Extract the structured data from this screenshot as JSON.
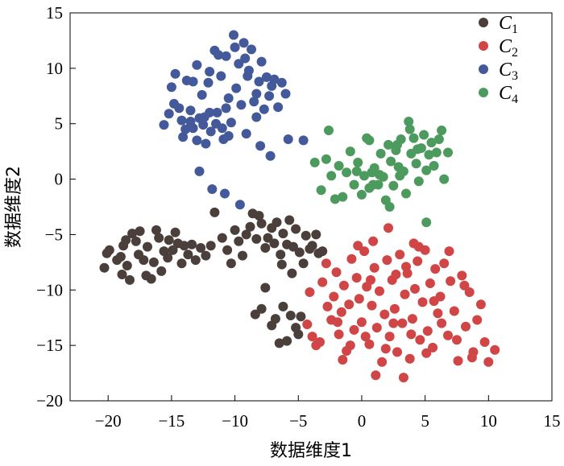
{
  "chart_data": {
    "type": "scatter",
    "xlabel": "数据维度1",
    "ylabel": "数据维度2",
    "xlim": [
      -23,
      15
    ],
    "ylim": [
      -20,
      15
    ],
    "xticks": [
      -20,
      -15,
      -10,
      -5,
      0,
      5,
      10,
      15
    ],
    "yticks": [
      -20,
      -15,
      -10,
      -5,
      0,
      5,
      10,
      15
    ],
    "grid": false,
    "legend_position": "top-right",
    "series": [
      {
        "name": "C",
        "subscript": "1",
        "color": "#4a3f3b",
        "points": [
          [
            -20.3,
            -8.0
          ],
          [
            -19.9,
            -6.4
          ],
          [
            -20.1,
            -6.7
          ],
          [
            -19.3,
            -7.3
          ],
          [
            -19.0,
            -7.0
          ],
          [
            -18.8,
            -6.0
          ],
          [
            -18.6,
            -5.5
          ],
          [
            -18.5,
            -7.8
          ],
          [
            -18.9,
            -8.6
          ],
          [
            -18.3,
            -9.1
          ],
          [
            -18.1,
            -4.9
          ],
          [
            -17.8,
            -5.6
          ],
          [
            -17.6,
            -6.8
          ],
          [
            -17.5,
            -4.7
          ],
          [
            -17.2,
            -7.3
          ],
          [
            -17.0,
            -8.7
          ],
          [
            -16.9,
            -6.1
          ],
          [
            -16.6,
            -9.0
          ],
          [
            -16.4,
            -7.5
          ],
          [
            -16.2,
            -4.6
          ],
          [
            -16.0,
            -5.3
          ],
          [
            -15.8,
            -8.3
          ],
          [
            -15.6,
            -6.5
          ],
          [
            -15.3,
            -7.1
          ],
          [
            -15.2,
            -5.5
          ],
          [
            -14.9,
            -6.4
          ],
          [
            -14.7,
            -4.8
          ],
          [
            -14.5,
            -5.8
          ],
          [
            -14.2,
            -7.6
          ],
          [
            -14.0,
            -6.0
          ],
          [
            -13.7,
            -6.8
          ],
          [
            -13.4,
            -5.9
          ],
          [
            -13.1,
            -7.3
          ],
          [
            -12.7,
            -6.2
          ],
          [
            -12.3,
            -6.9
          ],
          [
            -11.9,
            -6.0
          ],
          [
            -11.6,
            -3.0
          ],
          [
            -11.0,
            -5.3
          ],
          [
            -10.6,
            -6.4
          ],
          [
            -10.3,
            -7.6
          ],
          [
            -10.0,
            -4.6
          ],
          [
            -9.7,
            -5.6
          ],
          [
            -9.4,
            -6.9
          ],
          [
            -9.1,
            -5.0
          ],
          [
            -8.8,
            -4.3
          ],
          [
            -8.6,
            -3.1
          ],
          [
            -8.3,
            -5.4
          ],
          [
            -8.1,
            -3.3
          ],
          [
            -7.9,
            -4.0
          ],
          [
            -7.6,
            -6.2
          ],
          [
            -7.4,
            -5.3
          ],
          [
            -7.1,
            -4.4
          ],
          [
            -6.9,
            -5.8
          ],
          [
            -6.7,
            -3.9
          ],
          [
            -6.4,
            -6.8
          ],
          [
            -6.2,
            -4.9
          ],
          [
            -5.9,
            -5.9
          ],
          [
            -5.7,
            -3.7
          ],
          [
            -5.4,
            -6.1
          ],
          [
            -5.2,
            -4.5
          ],
          [
            -4.9,
            -6.6
          ],
          [
            -4.6,
            -7.6
          ],
          [
            -4.4,
            -5.1
          ],
          [
            -4.1,
            -6.3
          ],
          [
            -3.9,
            -6.0
          ],
          [
            -3.6,
            -5.0
          ],
          [
            -3.4,
            -6.7
          ],
          [
            -3.1,
            -6.5
          ],
          [
            -7.6,
            -9.8
          ],
          [
            -7.1,
            -13.2
          ],
          [
            -6.8,
            -12.6
          ],
          [
            -6.5,
            -14.8
          ],
          [
            -6.2,
            -11.5
          ],
          [
            -5.9,
            -14.6
          ],
          [
            -5.6,
            -12.3
          ],
          [
            -5.2,
            -13.4
          ],
          [
            -5.0,
            -14.0
          ],
          [
            -4.8,
            -12.4
          ],
          [
            -8.4,
            -12.2
          ],
          [
            -7.9,
            -11.7
          ],
          [
            -6.3,
            -7.7
          ],
          [
            -5.5,
            -8.5
          ]
        ]
      },
      {
        "name": "C",
        "subscript": "2",
        "color": "#d04545",
        "points": [
          [
            -4.1,
            -10.2
          ],
          [
            -4.3,
            -13.1
          ],
          [
            -3.9,
            -14.2
          ],
          [
            -3.6,
            -15.0
          ],
          [
            -3.3,
            -14.7
          ],
          [
            -3.1,
            -9.3
          ],
          [
            -2.8,
            -7.6
          ],
          [
            -2.4,
            -12.7
          ],
          [
            -2.2,
            -10.6
          ],
          [
            -2.0,
            -8.4
          ],
          [
            -1.8,
            -14.0
          ],
          [
            -1.6,
            -12.0
          ],
          [
            -1.4,
            -9.6
          ],
          [
            -1.2,
            -15.5
          ],
          [
            -1.0,
            -11.3
          ],
          [
            -0.8,
            -7.2
          ],
          [
            -0.6,
            -13.6
          ],
          [
            -0.4,
            -8.9
          ],
          [
            -0.2,
            -10.8
          ],
          [
            0.0,
            -12.9
          ],
          [
            0.2,
            -6.5
          ],
          [
            0.4,
            -9.7
          ],
          [
            0.6,
            -14.9
          ],
          [
            0.8,
            -11.4
          ],
          [
            1.0,
            -8.0
          ],
          [
            1.2,
            -13.4
          ],
          [
            1.4,
            -10.1
          ],
          [
            1.6,
            -16.5
          ],
          [
            1.8,
            -12.2
          ],
          [
            2.0,
            -7.3
          ],
          [
            2.2,
            -14.2
          ],
          [
            2.4,
            -9.1
          ],
          [
            2.6,
            -11.7
          ],
          [
            2.8,
            -15.6
          ],
          [
            3.0,
            -6.8
          ],
          [
            3.2,
            -13.0
          ],
          [
            3.4,
            -10.4
          ],
          [
            3.6,
            -8.5
          ],
          [
            3.8,
            -16.2
          ],
          [
            4.0,
            -12.6
          ],
          [
            4.2,
            -9.9
          ],
          [
            4.4,
            -7.4
          ],
          [
            4.6,
            -14.5
          ],
          [
            4.8,
            -11.1
          ],
          [
            5.0,
            -6.4
          ],
          [
            5.2,
            -13.7
          ],
          [
            5.4,
            -9.4
          ],
          [
            5.6,
            -15.2
          ],
          [
            5.8,
            -8.1
          ],
          [
            6.0,
            -12.1
          ],
          [
            6.2,
            -10.6
          ],
          [
            6.5,
            -7.6
          ],
          [
            6.8,
            -14.1
          ],
          [
            7.0,
            -9.2
          ],
          [
            7.3,
            -11.9
          ],
          [
            7.6,
            -16.4
          ],
          [
            7.9,
            -8.7
          ],
          [
            8.2,
            -13.3
          ],
          [
            8.5,
            -10.2
          ],
          [
            8.8,
            -15.6
          ],
          [
            9.1,
            -12.7
          ],
          [
            9.4,
            -11.3
          ],
          [
            9.7,
            -14.7
          ],
          [
            10.0,
            -16.5
          ],
          [
            10.5,
            -15.4
          ],
          [
            -2.7,
            -11.5
          ],
          [
            -1.5,
            -16.3
          ],
          [
            -0.3,
            -6.0
          ],
          [
            0.9,
            -5.6
          ],
          [
            2.1,
            -4.4
          ],
          [
            3.3,
            -17.9
          ],
          [
            4.5,
            -6.1
          ],
          [
            5.7,
            -11.0
          ],
          [
            6.9,
            -6.5
          ],
          [
            8.1,
            -9.6
          ],
          [
            -0.9,
            -15.0
          ],
          [
            0.7,
            -9.1
          ],
          [
            1.9,
            -15.3
          ],
          [
            2.7,
            -8.6
          ],
          [
            3.9,
            -14.0
          ],
          [
            5.1,
            -15.7
          ],
          [
            6.3,
            -13.0
          ],
          [
            7.5,
            -14.5
          ],
          [
            8.7,
            -16.1
          ],
          [
            1.1,
            -17.7
          ],
          [
            4.1,
            -5.8
          ],
          [
            -1.9,
            -12.9
          ],
          [
            0.3,
            -14.2
          ],
          [
            2.5,
            -13.0
          ],
          [
            3.5,
            -7.9
          ]
        ]
      },
      {
        "name": "C",
        "subscript": "3",
        "color": "#43599a",
        "points": [
          [
            -15.6,
            4.9
          ],
          [
            -15.2,
            5.9
          ],
          [
            -15.0,
            8.3
          ],
          [
            -14.7,
            9.5
          ],
          [
            -14.4,
            6.4
          ],
          [
            -14.1,
            3.8
          ],
          [
            -13.8,
            8.9
          ],
          [
            -13.5,
            6.2
          ],
          [
            -13.3,
            4.6
          ],
          [
            -13.0,
            10.3
          ],
          [
            -12.8,
            5.5
          ],
          [
            -12.6,
            7.6
          ],
          [
            -12.3,
            3.2
          ],
          [
            -12.1,
            8.7
          ],
          [
            -11.9,
            4.3
          ],
          [
            -11.6,
            11.6
          ],
          [
            -11.4,
            6.0
          ],
          [
            -11.1,
            9.3
          ],
          [
            -10.9,
            3.6
          ],
          [
            -10.7,
            11.1
          ],
          [
            -10.5,
            7.3
          ],
          [
            -10.3,
            5.1
          ],
          [
            -10.1,
            13.0
          ],
          [
            -9.9,
            8.2
          ],
          [
            -9.7,
            10.4
          ],
          [
            -9.5,
            6.7
          ],
          [
            -9.3,
            12.3
          ],
          [
            -9.1,
            4.1
          ],
          [
            -8.9,
            9.8
          ],
          [
            -8.7,
            11.7
          ],
          [
            -8.5,
            7.0
          ],
          [
            -8.3,
            5.6
          ],
          [
            -8.1,
            8.8
          ],
          [
            -7.9,
            10.6
          ],
          [
            -7.7,
            6.3
          ],
          [
            -7.5,
            9.2
          ],
          [
            -7.3,
            7.5
          ],
          [
            -7.1,
            8.4
          ],
          [
            -6.9,
            9.0
          ],
          [
            -6.6,
            6.5
          ],
          [
            -6.3,
            8.7
          ],
          [
            -6.0,
            7.7
          ],
          [
            -5.8,
            3.6
          ],
          [
            -12.8,
            0.7
          ],
          [
            -11.8,
            -0.9
          ],
          [
            -10.8,
            -1.3
          ],
          [
            -9.6,
            -2.3
          ],
          [
            -8.0,
            3.0
          ],
          [
            -7.2,
            2.1
          ],
          [
            -4.6,
            3.5
          ],
          [
            -13.5,
            5.2
          ],
          [
            -12.5,
            4.9
          ],
          [
            -11.0,
            4.6
          ],
          [
            -14.2,
            5.3
          ],
          [
            -13.0,
            3.5
          ],
          [
            -12.0,
            6.0
          ],
          [
            -10.5,
            3.9
          ],
          [
            -13.3,
            8.8
          ],
          [
            -11.3,
            11.2
          ],
          [
            -9.0,
            9.3
          ],
          [
            -8.3,
            7.7
          ],
          [
            -10.7,
            6.4
          ],
          [
            -12.4,
            5.6
          ],
          [
            -9.2,
            10.9
          ],
          [
            -13.9,
            4.5
          ],
          [
            -11.5,
            5.0
          ],
          [
            -10.0,
            11.9
          ],
          [
            -14.8,
            6.8
          ],
          [
            -12.0,
            9.7
          ]
        ]
      },
      {
        "name": "C",
        "subscript": "4",
        "color": "#4d9a5e",
        "points": [
          [
            -3.7,
            1.5
          ],
          [
            -3.2,
            -1.0
          ],
          [
            -2.8,
            1.8
          ],
          [
            -2.6,
            4.4
          ],
          [
            -2.4,
            0.3
          ],
          [
            -2.1,
            -1.8
          ],
          [
            -1.8,
            1.2
          ],
          [
            -1.5,
            -1.6
          ],
          [
            -1.2,
            0.6
          ],
          [
            -0.9,
            2.5
          ],
          [
            -0.6,
            -0.5
          ],
          [
            -0.3,
            1.5
          ],
          [
            0.0,
            -1.4
          ],
          [
            0.2,
            0.3
          ],
          [
            0.4,
            3.7
          ],
          [
            0.6,
            -0.8
          ],
          [
            0.8,
            0.6
          ],
          [
            1.0,
            1.0
          ],
          [
            1.3,
            -0.5
          ],
          [
            1.5,
            2.3
          ],
          [
            1.7,
            0.2
          ],
          [
            1.9,
            -1.9
          ],
          [
            2.1,
            3.1
          ],
          [
            2.3,
            1.6
          ],
          [
            2.5,
            -0.6
          ],
          [
            2.7,
            2.6
          ],
          [
            2.9,
            1.1
          ],
          [
            3.1,
            3.6
          ],
          [
            3.3,
            0.7
          ],
          [
            3.5,
            -1.3
          ],
          [
            3.7,
            5.2
          ],
          [
            3.9,
            2.3
          ],
          [
            4.1,
            3.7
          ],
          [
            4.3,
            1.4
          ],
          [
            4.5,
            -0.2
          ],
          [
            4.7,
            2.8
          ],
          [
            4.9,
            4.0
          ],
          [
            5.1,
            0.8
          ],
          [
            5.3,
            2.2
          ],
          [
            5.5,
            3.3
          ],
          [
            5.7,
            1.2
          ],
          [
            5.9,
            2.4
          ],
          [
            6.1,
            3.6
          ],
          [
            6.3,
            4.4
          ],
          [
            6.5,
            0.0
          ],
          [
            6.8,
            2.4
          ],
          [
            5.1,
            -3.9
          ],
          [
            0.6,
            3.5
          ],
          [
            1.4,
            0.4
          ],
          [
            2.8,
            3.1
          ],
          [
            3.8,
            4.5
          ],
          [
            4.4,
            2.7
          ],
          [
            -0.4,
            0.7
          ],
          [
            0.9,
            -0.5
          ],
          [
            2.2,
            -2.5
          ],
          [
            3.0,
            0.3
          ]
        ]
      }
    ]
  }
}
